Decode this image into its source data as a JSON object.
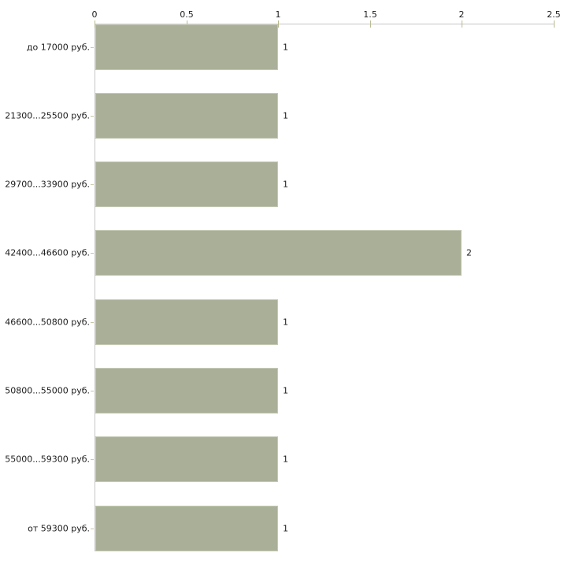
{
  "chart_data": {
    "type": "bar",
    "orientation": "horizontal",
    "title": "",
    "xlabel": "",
    "ylabel": "",
    "categories": [
      "до 17000 руб.",
      "21300...25500 руб.",
      "29700...33900 руб.",
      "42400...46600 руб.",
      "46600...50800 руб.",
      "50800...55000 руб.",
      "55000...59300 руб.",
      "от 59300 руб."
    ],
    "values": [
      1,
      1,
      1,
      2,
      1,
      1,
      1,
      1
    ],
    "bar_value_labels": [
      "1",
      "1",
      "1",
      "2",
      "1",
      "1",
      "1",
      "1"
    ],
    "x_axis": {
      "position": "top",
      "range": [
        0,
        2.5
      ],
      "tick_values": [
        0,
        0.5,
        1,
        1.5,
        2,
        2.5
      ],
      "tick_labels": [
        "0",
        "0.5",
        "1",
        "1.5",
        "2",
        "2.5"
      ]
    },
    "grid": false,
    "legend": false,
    "colors": {
      "background": "#ffffff",
      "bar_fill": "#a9b097",
      "bar_edge": "#c5cab6",
      "axis_line": "#c6c6c6",
      "x_tick_mark": "#b9ba8e",
      "category_tick_mark": "#c9c3a4",
      "text": "#1c1c1c"
    }
  }
}
